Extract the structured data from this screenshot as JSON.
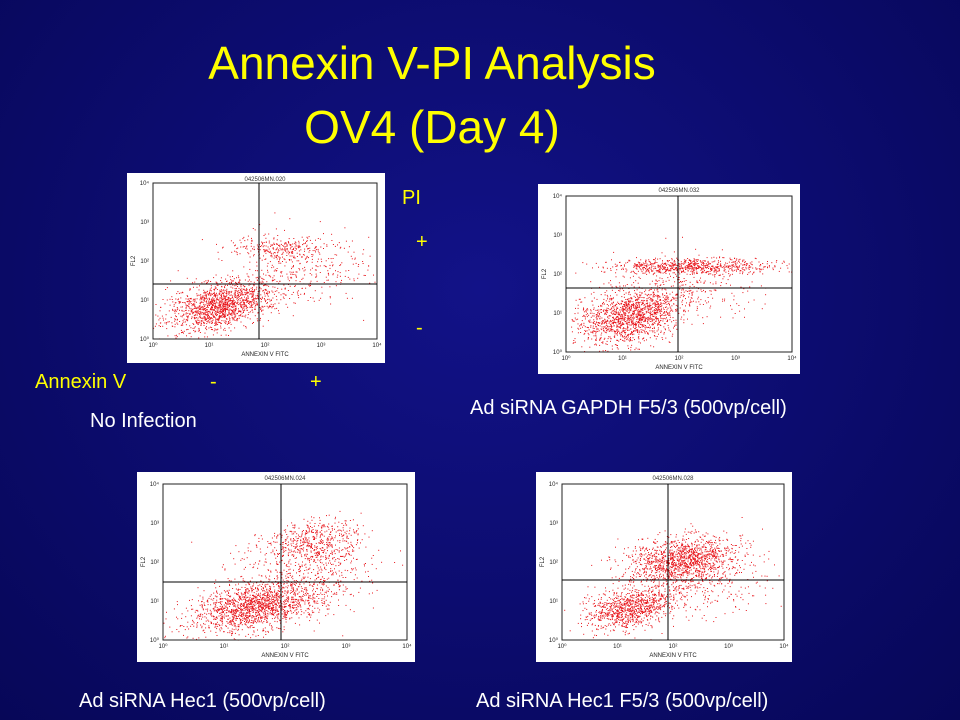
{
  "slide": {
    "title_line1": "Annexin V-PI Analysis",
    "title_line2": "OV4 (Day 4)",
    "pi_label": "PI",
    "pi_plus": "+",
    "pi_minus": "-",
    "annexin_label": "Annexin V",
    "annexin_minus": "-",
    "annexin_plus": "+"
  },
  "colors": {
    "background": "#0b0b6e",
    "title": "#ffff00",
    "dots": "#e8141a"
  },
  "panels": [
    {
      "id": "p1",
      "header": "042506MN.020",
      "xaxis": "ANNEXIN V FITC",
      "yaxis": "FL2",
      "caption": "No Infection"
    },
    {
      "id": "p2",
      "header": "042506MN.032",
      "xaxis": "ANNEXIN V FITC",
      "yaxis": "FL2",
      "caption": "Ad siRNA GAPDH F5/3 (500vp/cell)"
    },
    {
      "id": "p3",
      "header": "042506MN.024",
      "xaxis": "ANNEXIN V FITC",
      "yaxis": "FL2",
      "caption": "Ad siRNA Hec1 (500vp/cell)"
    },
    {
      "id": "p4",
      "header": "042506MN.028",
      "xaxis": "ANNEXIN V FITC",
      "yaxis": "FL2",
      "caption": "Ad siRNA Hec1 F5/3 (500vp/cell)"
    }
  ],
  "ticks": {
    "y": [
      "10⁴",
      "10³",
      "10²",
      "10¹",
      "10⁰"
    ],
    "x": [
      "10⁰",
      "10¹",
      "10²",
      "10³",
      "10⁴"
    ]
  }
}
